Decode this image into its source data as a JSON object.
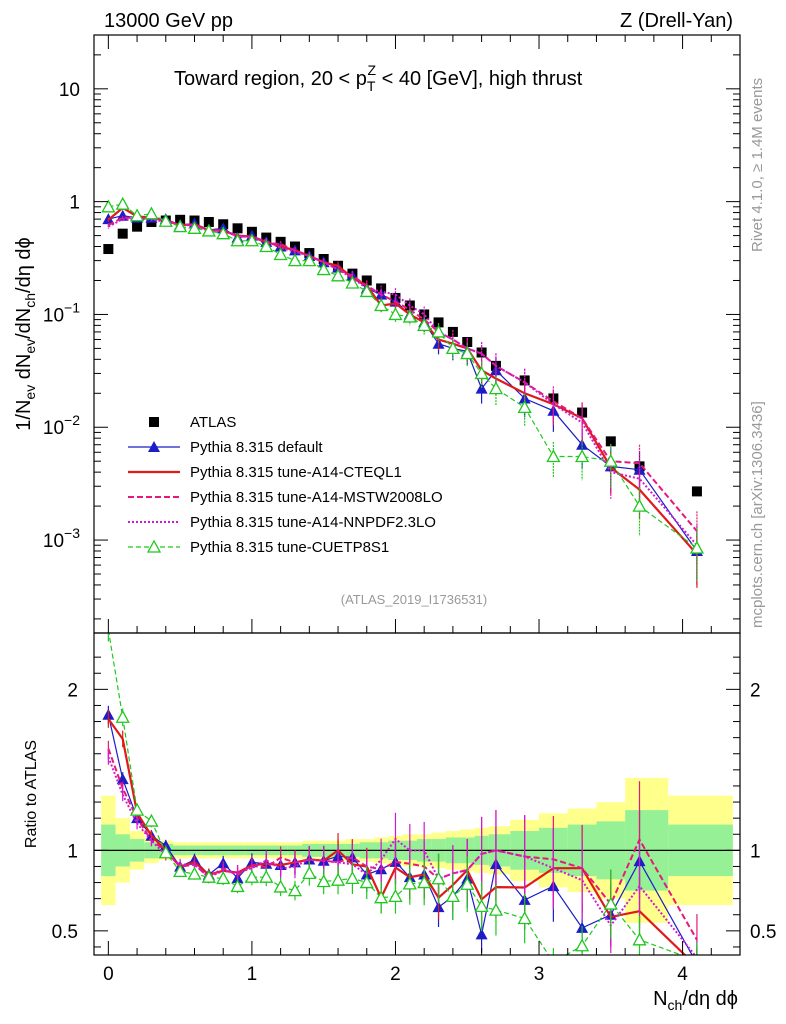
{
  "header": {
    "left": "13000 GeV pp",
    "right": "Z (Drell-Yan)"
  },
  "annotation": "(ATLAS_2019_I1736531)",
  "side_texts": {
    "rivet": "Rivet 4.1.0, ≥ 1.4M events",
    "mcplots": "mcplots.cern.ch [arXiv:1306.3436]"
  },
  "colors": {
    "ATLAS": "#000000",
    "default": "#1c1cc8",
    "CTEQL1": "#e01919",
    "MSTW": "#e6197a",
    "NNPDF": "#d219d2",
    "CUETP8S1": "#1ec81e",
    "band_outer": "#ffff8c",
    "band_inner": "#96f096"
  },
  "chart_data": {
    "type": "line",
    "title": "Toward region, 20 < p_T^Z < 40 [GeV], high thrust",
    "xlabel": "N_ch/dη dϕ",
    "ylabel": "1/N_ev dN_ev/dN_ch/dη dϕ",
    "ratio_ylabel": "Ratio to ATLAS",
    "xlim": [
      -0.1,
      4.4
    ],
    "ylim": [
      0.00015,
      30
    ],
    "ratio_ylim": [
      0.35,
      2.35
    ],
    "x_ticks": [
      "0",
      "1",
      "2",
      "3",
      "4"
    ],
    "y_ticks": [
      "10^-3",
      "10^-2",
      "10^-1",
      "1",
      "10"
    ],
    "ratio_ticks": [
      "0.5",
      "1",
      "2"
    ],
    "x": [
      0.0,
      0.1,
      0.2,
      0.3,
      0.4,
      0.5,
      0.6,
      0.7,
      0.8,
      0.9,
      1.0,
      1.1,
      1.2,
      1.3,
      1.4,
      1.5,
      1.6,
      1.7,
      1.8,
      1.9,
      2.0,
      2.1,
      2.2,
      2.3,
      2.4,
      2.5,
      2.6,
      2.7,
      2.9,
      3.1,
      3.3,
      3.5,
      3.7,
      4.1
    ],
    "series": [
      {
        "name": "ATLAS",
        "key": "ATLAS",
        "values": [
          0.38,
          0.52,
          0.6,
          0.66,
          0.68,
          0.69,
          0.68,
          0.66,
          0.63,
          0.58,
          0.54,
          0.48,
          0.44,
          0.4,
          0.35,
          0.31,
          0.27,
          0.23,
          0.2,
          0.17,
          0.14,
          0.12,
          0.1,
          0.085,
          0.07,
          0.057,
          0.046,
          0.035,
          0.026,
          0.018,
          0.0135,
          0.0075,
          0.0045,
          0.0027
        ]
      },
      {
        "name": "Pythia 8.315 default",
        "key": "default",
        "values": [
          0.7,
          0.75,
          0.72,
          0.72,
          0.7,
          0.62,
          0.64,
          0.56,
          0.58,
          0.48,
          0.5,
          0.44,
          0.4,
          0.37,
          0.33,
          0.29,
          0.26,
          0.22,
          0.17,
          0.15,
          0.13,
          0.1,
          0.085,
          0.055,
          0.05,
          0.047,
          0.022,
          0.032,
          0.018,
          0.014,
          0.007,
          0.0045,
          0.0042,
          0.0008
        ]
      },
      {
        "name": "Pythia 8.315 tune-A14-CTEQL1",
        "key": "CTEQL1",
        "values": [
          0.69,
          0.88,
          0.74,
          0.72,
          0.68,
          0.62,
          0.63,
          0.56,
          0.55,
          0.5,
          0.49,
          0.44,
          0.4,
          0.37,
          0.33,
          0.29,
          0.27,
          0.21,
          0.18,
          0.12,
          0.125,
          0.1,
          0.085,
          0.06,
          0.055,
          0.05,
          0.032,
          0.027,
          0.02,
          0.016,
          0.012,
          0.0044,
          0.0028,
          0.00075
        ]
      },
      {
        "name": "Pythia 8.315 tune-A14-MSTW2008LO",
        "key": "MSTW",
        "values": [
          0.62,
          0.72,
          0.72,
          0.7,
          0.68,
          0.62,
          0.62,
          0.55,
          0.56,
          0.49,
          0.49,
          0.43,
          0.42,
          0.37,
          0.33,
          0.29,
          0.25,
          0.22,
          0.18,
          0.15,
          0.13,
          0.11,
          0.09,
          0.07,
          0.06,
          0.05,
          0.045,
          0.035,
          0.025,
          0.017,
          0.012,
          0.005,
          0.0048,
          0.0012
        ]
      },
      {
        "name": "Pythia 8.315 tune-A14-NNPDF2.3LO",
        "key": "NNPDF",
        "values": [
          0.6,
          0.7,
          0.7,
          0.7,
          0.66,
          0.63,
          0.62,
          0.55,
          0.55,
          0.5,
          0.48,
          0.45,
          0.39,
          0.36,
          0.33,
          0.29,
          0.25,
          0.21,
          0.17,
          0.16,
          0.15,
          0.12,
          0.1,
          0.07,
          0.06,
          0.05,
          0.045,
          0.035,
          0.025,
          0.016,
          0.011,
          0.004,
          0.0035,
          0.0009
        ]
      },
      {
        "name": "Pythia 8.315 tune-CUETP8S1",
        "key": "CUETP8S1",
        "values": [
          0.9,
          0.95,
          0.75,
          0.78,
          0.67,
          0.6,
          0.58,
          0.55,
          0.52,
          0.45,
          0.45,
          0.4,
          0.34,
          0.3,
          0.3,
          0.25,
          0.22,
          0.19,
          0.16,
          0.12,
          0.1,
          0.095,
          0.08,
          0.07,
          0.05,
          0.045,
          0.03,
          0.022,
          0.015,
          0.0055,
          0.0055,
          0.005,
          0.002,
          0.00085
        ]
      }
    ],
    "ratio_band": {
      "edges": [
        -0.05,
        0.05,
        0.15,
        0.25,
        0.35,
        0.45,
        0.55,
        0.65,
        0.75,
        0.85,
        0.95,
        1.05,
        1.15,
        1.25,
        1.35,
        1.45,
        1.55,
        1.65,
        1.75,
        1.85,
        1.95,
        2.05,
        2.15,
        2.25,
        2.35,
        2.45,
        2.55,
        2.65,
        2.8,
        3.0,
        3.2,
        3.4,
        3.6,
        3.9,
        4.35
      ],
      "outer": [
        0.34,
        0.2,
        0.12,
        0.08,
        0.06,
        0.05,
        0.05,
        0.05,
        0.05,
        0.05,
        0.05,
        0.05,
        0.05,
        0.05,
        0.06,
        0.06,
        0.06,
        0.07,
        0.07,
        0.08,
        0.09,
        0.1,
        0.1,
        0.11,
        0.12,
        0.13,
        0.14,
        0.15,
        0.19,
        0.23,
        0.26,
        0.3,
        0.45,
        0.34
      ],
      "inner": [
        0.16,
        0.1,
        0.07,
        0.05,
        0.04,
        0.03,
        0.03,
        0.03,
        0.03,
        0.03,
        0.03,
        0.03,
        0.03,
        0.03,
        0.04,
        0.04,
        0.04,
        0.04,
        0.05,
        0.05,
        0.06,
        0.06,
        0.07,
        0.07,
        0.08,
        0.08,
        0.09,
        0.1,
        0.12,
        0.14,
        0.16,
        0.18,
        0.25,
        0.16
      ]
    }
  }
}
